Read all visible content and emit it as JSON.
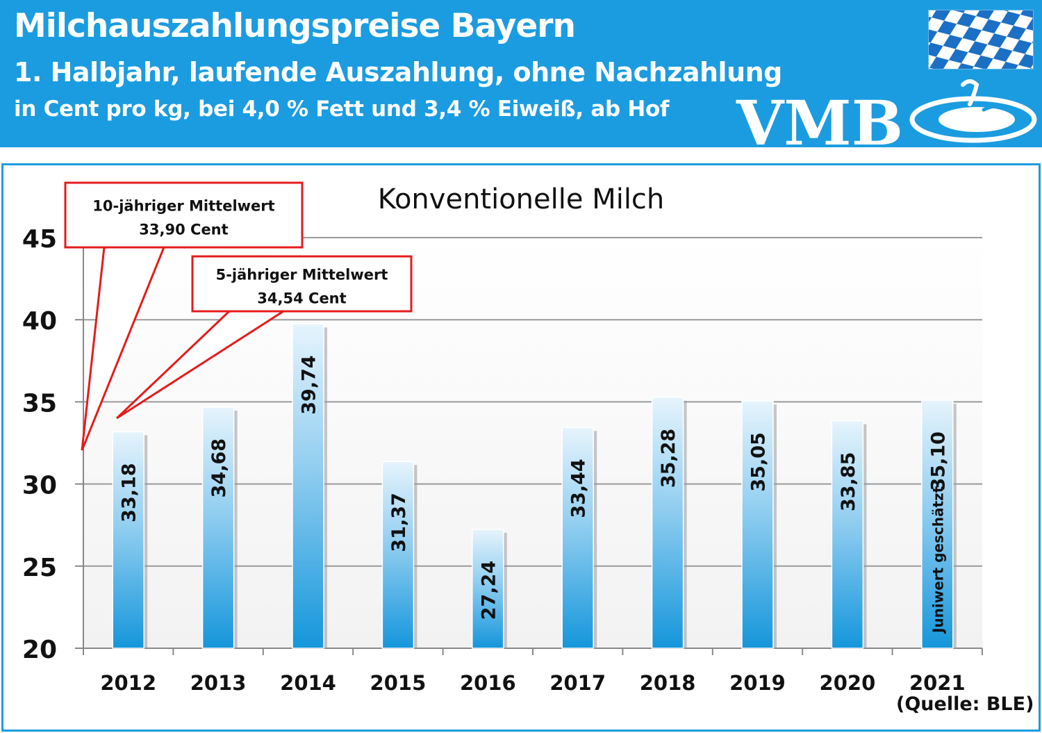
{
  "header": {
    "title": "Milchauszahlungspreise Bayern",
    "subtitle1": "1. Halbjahr, laufende Auszahlung, ohne Nachzahlung",
    "subtitle2": "in Cent pro kg,  bei 4,0 % Fett und 3,4 % Eiweiß, ab Hof",
    "logo_text": "VMB",
    "colors": {
      "band": "#1b9ce0",
      "text": "#ffffff"
    },
    "icons": [
      "bavaria-flag-icon",
      "vmb-logo-icon"
    ]
  },
  "callouts": [
    {
      "line1": "10-jähriger Mittelwert",
      "line2": "33,90 Cent"
    },
    {
      "line1": "5-jähriger Mittelwert",
      "line2": "34,54 Cent"
    }
  ],
  "source": "(Quelle: BLE)",
  "chart_data": {
    "type": "bar",
    "title": "Konventionelle Milch",
    "categories": [
      "2012",
      "2013",
      "2014",
      "2015",
      "2016",
      "2017",
      "2018",
      "2019",
      "2020",
      "2021"
    ],
    "values": [
      33.18,
      34.68,
      39.74,
      31.37,
      27.24,
      33.44,
      35.28,
      35.05,
      33.85,
      35.1
    ],
    "data_labels": [
      "33,18",
      "34,68",
      "39,74",
      "31,37",
      "27,24",
      "33,44",
      "35,28",
      "35,05",
      "33,85",
      "35,10"
    ],
    "bar_notes": {
      "2021": "Juniwert geschätzt"
    },
    "ylim": [
      20,
      45
    ],
    "yticks": [
      "20",
      "25",
      "30",
      "35",
      "40",
      "45"
    ],
    "grid": true,
    "xlabel": "",
    "ylabel": "",
    "colors": {
      "bar_top": "#e6f4fc",
      "bar_bottom": "#1596db",
      "callout_border": "#e41c1c",
      "grid": "#999999"
    }
  }
}
